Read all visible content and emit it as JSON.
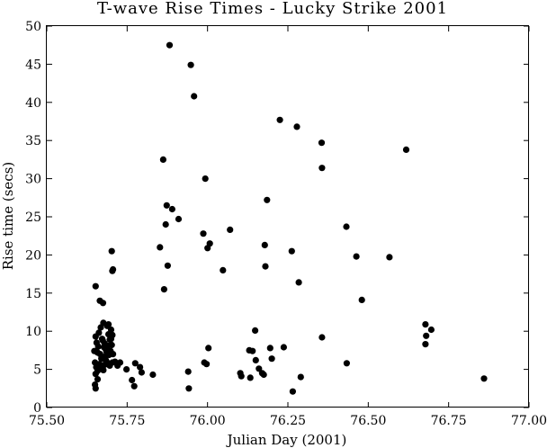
{
  "chart_data": {
    "type": "scatter",
    "title": "T-wave Rise Times - Lucky Strike 2001",
    "xlabel": "Julian Day (2001)",
    "ylabel": "Rise time (secs)",
    "xlim": [
      75.5,
      77.0
    ],
    "ylim": [
      0,
      50
    ],
    "xticks": [
      "75.50",
      "75.75",
      "76.00",
      "76.25",
      "76.50",
      "76.75",
      "77.00"
    ],
    "yticks": [
      "0",
      "5",
      "10",
      "15",
      "20",
      "25",
      "30",
      "35",
      "40",
      "45",
      "50"
    ],
    "xtick_values": [
      75.5,
      75.75,
      76.0,
      76.25,
      76.5,
      76.75,
      77.0
    ],
    "ytick_values": [
      0,
      5,
      10,
      15,
      20,
      25,
      30,
      35,
      40,
      45,
      50
    ],
    "grid": false,
    "legend": "none",
    "marker_color": "#000000",
    "points": [
      [
        75.652,
        15.9
      ],
      [
        75.665,
        14.0
      ],
      [
        75.675,
        13.7
      ],
      [
        75.652,
        9.3
      ],
      [
        75.655,
        8.5
      ],
      [
        75.658,
        7.2
      ],
      [
        75.648,
        7.4
      ],
      [
        75.662,
        9.8
      ],
      [
        75.668,
        10.5
      ],
      [
        75.672,
        9.0
      ],
      [
        75.676,
        11.1
      ],
      [
        75.68,
        8.4
      ],
      [
        75.684,
        7.6
      ],
      [
        75.688,
        10.7
      ],
      [
        75.692,
        9.6
      ],
      [
        75.696,
        8.9
      ],
      [
        75.7,
        10.2
      ],
      [
        75.704,
        9.5
      ],
      [
        75.666,
        7.0
      ],
      [
        75.67,
        6.4
      ],
      [
        75.678,
        7.9
      ],
      [
        75.682,
        6.7
      ],
      [
        75.686,
        7.3
      ],
      [
        75.69,
        8.1
      ],
      [
        75.694,
        6.9
      ],
      [
        75.698,
        7.4
      ],
      [
        75.702,
        8.2
      ],
      [
        75.706,
        7.0
      ],
      [
        75.66,
        8.0
      ],
      [
        75.674,
        8.8
      ],
      [
        75.692,
        10.9
      ],
      [
        75.7,
        9.0
      ],
      [
        75.65,
        5.9
      ],
      [
        75.654,
        5.3
      ],
      [
        75.658,
        4.8
      ],
      [
        75.652,
        4.4
      ],
      [
        75.664,
        5.7
      ],
      [
        75.672,
        5.1
      ],
      [
        75.68,
        5.6
      ],
      [
        75.688,
        5.9
      ],
      [
        75.696,
        5.5
      ],
      [
        75.704,
        5.9
      ],
      [
        75.712,
        6.0
      ],
      [
        75.72,
        5.5
      ],
      [
        75.728,
        5.9
      ],
      [
        75.676,
        4.9
      ],
      [
        75.684,
        6.2
      ],
      [
        75.65,
        3.0
      ],
      [
        75.652,
        2.5
      ],
      [
        75.658,
        3.7
      ],
      [
        75.702,
        20.5
      ],
      [
        75.704,
        17.9
      ],
      [
        75.706,
        18.1
      ],
      [
        75.748,
        5.0
      ],
      [
        75.765,
        3.6
      ],
      [
        75.772,
        2.8
      ],
      [
        75.775,
        5.8
      ],
      [
        75.79,
        5.3
      ],
      [
        75.795,
        4.6
      ],
      [
        75.83,
        4.3
      ],
      [
        75.852,
        21.0
      ],
      [
        75.862,
        32.5
      ],
      [
        75.865,
        15.5
      ],
      [
        75.87,
        24.0
      ],
      [
        75.873,
        26.5
      ],
      [
        75.876,
        18.6
      ],
      [
        75.882,
        47.5
      ],
      [
        75.89,
        26.0
      ],
      [
        75.91,
        24.7
      ],
      [
        75.94,
        4.7
      ],
      [
        75.942,
        2.5
      ],
      [
        75.948,
        44.9
      ],
      [
        75.958,
        40.8
      ],
      [
        75.987,
        22.8
      ],
      [
        75.99,
        5.9
      ],
      [
        75.993,
        30.0
      ],
      [
        75.997,
        5.7
      ],
      [
        76.0,
        20.9
      ],
      [
        76.003,
        7.8
      ],
      [
        76.007,
        21.5
      ],
      [
        76.048,
        18.0
      ],
      [
        76.07,
        23.3
      ],
      [
        76.102,
        4.5
      ],
      [
        76.105,
        4.1
      ],
      [
        76.13,
        7.5
      ],
      [
        76.133,
        3.9
      ],
      [
        76.14,
        7.4
      ],
      [
        76.148,
        10.1
      ],
      [
        76.15,
        6.2
      ],
      [
        76.16,
        5.1
      ],
      [
        76.17,
        4.5
      ],
      [
        76.175,
        4.3
      ],
      [
        76.178,
        21.3
      ],
      [
        76.18,
        18.5
      ],
      [
        76.185,
        27.2
      ],
      [
        76.195,
        7.8
      ],
      [
        76.2,
        6.4
      ],
      [
        76.225,
        37.7
      ],
      [
        76.237,
        7.9
      ],
      [
        76.262,
        20.5
      ],
      [
        76.265,
        2.1
      ],
      [
        76.278,
        36.8
      ],
      [
        76.284,
        16.4
      ],
      [
        76.29,
        4.0
      ],
      [
        76.355,
        34.7
      ],
      [
        76.356,
        31.4
      ],
      [
        76.356,
        9.2
      ],
      [
        76.432,
        23.7
      ],
      [
        76.433,
        5.8
      ],
      [
        76.463,
        19.8
      ],
      [
        76.48,
        14.1
      ],
      [
        76.566,
        19.7
      ],
      [
        76.618,
        33.8
      ],
      [
        76.678,
        10.9
      ],
      [
        76.68,
        9.4
      ],
      [
        76.678,
        8.3
      ],
      [
        76.696,
        10.2
      ],
      [
        76.86,
        3.8
      ]
    ]
  }
}
